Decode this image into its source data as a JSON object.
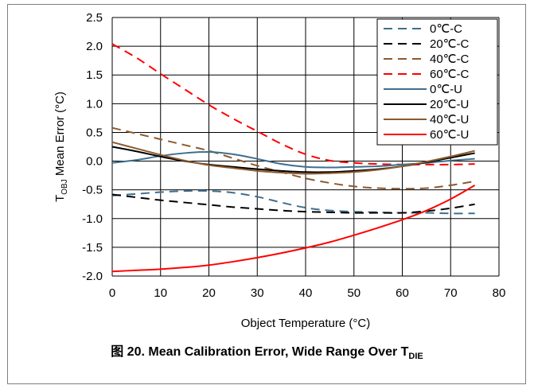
{
  "caption": {
    "figure_label": "图 20. Mean Calibration Error, Wide Range Over T",
    "subscript": "DIE"
  },
  "chart_data": {
    "type": "line",
    "title": "",
    "xlabel": "Object Temperature (°C)",
    "ylabel_main": "T",
    "ylabel_sub": "OBJ",
    "ylabel_rest": " Mean Error (°C)",
    "xlim": [
      0,
      80
    ],
    "ylim": [
      -2.0,
      2.5
    ],
    "xticks": [
      0,
      10,
      20,
      30,
      40,
      50,
      60,
      70,
      80
    ],
    "yticks": [
      2.5,
      2.0,
      1.5,
      1.0,
      0.5,
      0.0,
      -0.5,
      -1.0,
      -1.5,
      -2.0
    ],
    "ytick_labels": [
      "2.5",
      "2.0",
      "1.5",
      "1.0",
      "0.5",
      "0.0",
      "-0.5",
      "-1.0",
      "-1.5",
      "-2.0"
    ],
    "grid": true,
    "legend_position": "top-right",
    "x": [
      0,
      5,
      10,
      15,
      20,
      25,
      30,
      35,
      40,
      45,
      50,
      55,
      60,
      65,
      70,
      75
    ],
    "series": [
      {
        "name": "0℃-C",
        "color": "#3e6f8e",
        "dash": true,
        "values": [
          -0.6,
          -0.57,
          -0.54,
          -0.52,
          -0.52,
          -0.55,
          -0.62,
          -0.72,
          -0.81,
          -0.86,
          -0.88,
          -0.89,
          -0.9,
          -0.9,
          -0.91,
          -0.91
        ]
      },
      {
        "name": "20℃-C",
        "color": "#000000",
        "dash": true,
        "values": [
          -0.58,
          -0.63,
          -0.68,
          -0.72,
          -0.76,
          -0.8,
          -0.83,
          -0.86,
          -0.88,
          -0.89,
          -0.9,
          -0.9,
          -0.9,
          -0.87,
          -0.82,
          -0.75
        ]
      },
      {
        "name": "40℃-C",
        "color": "#8c5a2e",
        "dash": true,
        "values": [
          0.58,
          0.48,
          0.38,
          0.28,
          0.18,
          0.05,
          -0.08,
          -0.19,
          -0.3,
          -0.38,
          -0.44,
          -0.47,
          -0.48,
          -0.47,
          -0.42,
          -0.35
        ]
      },
      {
        "name": "60℃-C",
        "color": "#ff0000",
        "dash": true,
        "values": [
          2.04,
          1.8,
          1.52,
          1.25,
          0.98,
          0.74,
          0.52,
          0.3,
          0.12,
          0.01,
          -0.03,
          -0.05,
          -0.06,
          -0.06,
          -0.06,
          -0.05
        ]
      },
      {
        "name": "0℃-U",
        "color": "#3e6f8e",
        "dash": false,
        "values": [
          -0.03,
          0.02,
          0.09,
          0.14,
          0.16,
          0.12,
          0.04,
          -0.05,
          -0.1,
          -0.11,
          -0.1,
          -0.09,
          -0.06,
          -0.03,
          0.01,
          0.04
        ]
      },
      {
        "name": "20℃-U",
        "color": "#000000",
        "dash": false,
        "values": [
          0.25,
          0.17,
          0.08,
          0.0,
          -0.06,
          -0.1,
          -0.14,
          -0.17,
          -0.19,
          -0.19,
          -0.17,
          -0.14,
          -0.09,
          -0.02,
          0.06,
          0.14
        ]
      },
      {
        "name": "40℃-U",
        "color": "#8c5a2e",
        "dash": false,
        "values": [
          0.33,
          0.22,
          0.11,
          0.01,
          -0.07,
          -0.12,
          -0.17,
          -0.2,
          -0.22,
          -0.21,
          -0.19,
          -0.15,
          -0.09,
          -0.01,
          0.08,
          0.18
        ]
      },
      {
        "name": "60℃-U",
        "color": "#ff0000",
        "dash": false,
        "values": [
          -1.92,
          -1.9,
          -1.88,
          -1.85,
          -1.81,
          -1.75,
          -1.68,
          -1.6,
          -1.51,
          -1.41,
          -1.29,
          -1.16,
          -1.02,
          -0.86,
          -0.66,
          -0.42
        ]
      }
    ]
  }
}
